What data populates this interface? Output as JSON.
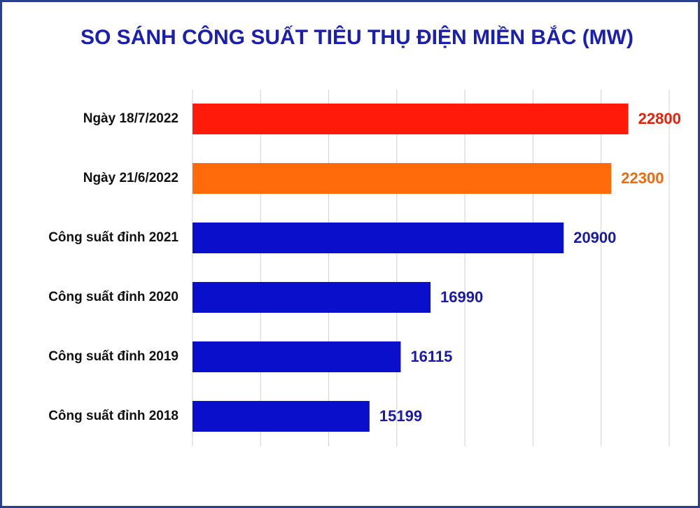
{
  "chart_data": {
    "type": "bar",
    "orientation": "horizontal",
    "title": "SO SÁNH CÔNG SUẤT TIÊU THỤ ĐIỆN MIỀN BẮC (MW)",
    "categories": [
      "Ngày 18/7/2022",
      "Ngày 21/6/2022",
      "Công suất đỉnh 2021",
      "Công suất đỉnh 2020",
      "Công suất đỉnh 2019",
      "Công suất đỉnh 2018"
    ],
    "values": [
      22800,
      22300,
      20900,
      16990,
      16115,
      15199
    ],
    "colors": [
      "#ff1a0a",
      "#ff6a0a",
      "#0a0fcc",
      "#0a0fcc",
      "#0a0fcc",
      "#0a0fcc"
    ],
    "label_colors": [
      "#e8200a",
      "#ee6a0a",
      "#1a1aa8",
      "#1a1aa8",
      "#1a1aa8",
      "#1a1aa8"
    ],
    "title_color": "#1a1fb0",
    "xlim": [
      10000,
      24000
    ],
    "xticks": [
      10000,
      12000,
      14000,
      16000,
      18000,
      20000,
      22000,
      24000
    ],
    "grid": true
  }
}
